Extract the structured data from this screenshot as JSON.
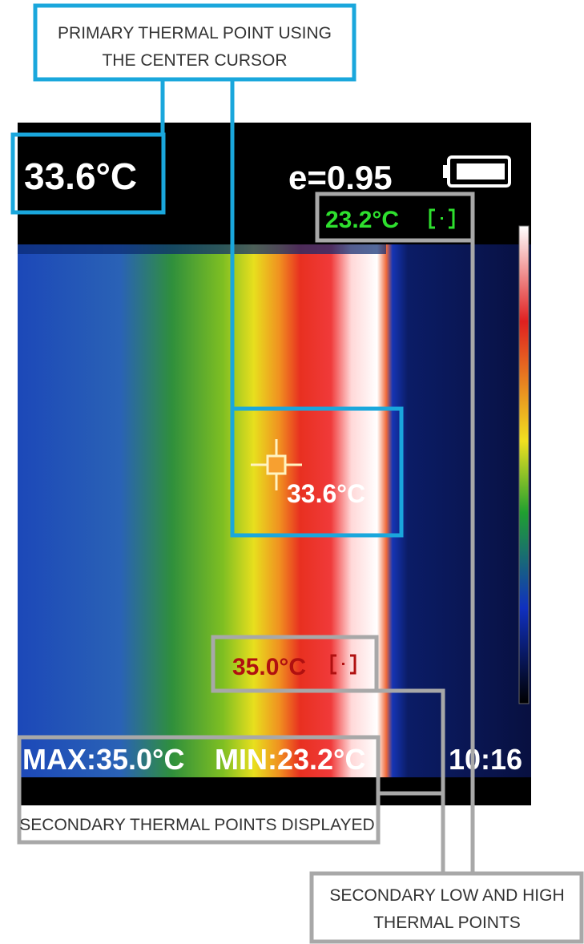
{
  "annotations": {
    "primary": [
      "PRIMARY THERMAL POINT USING",
      "THE CENTER CURSOR"
    ],
    "secondary_displayed": "SECONDARY THERMAL POINTS DISPLAYED",
    "secondary_low_high": [
      "SECONDARY LOW AND HIGH",
      "THERMAL POINTS"
    ]
  },
  "screen": {
    "center_temperature": "33.6°C",
    "emissivity": "e=0.95",
    "low_point": "23.2°C",
    "cursor_temperature": "33.6°C",
    "high_point": "35.0°C",
    "max": "MAX:35.0°C",
    "min": "MIN:23.2°C",
    "time": "10:16"
  }
}
